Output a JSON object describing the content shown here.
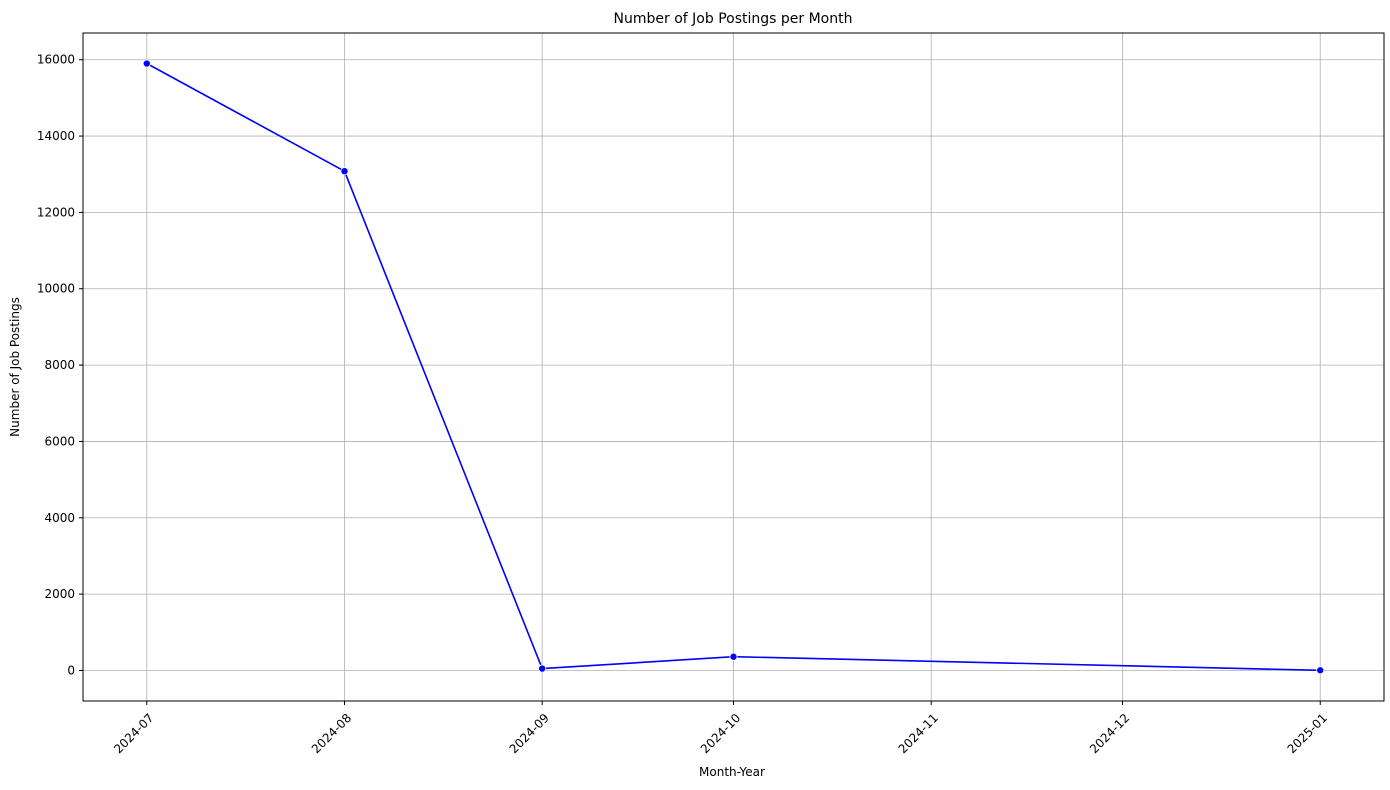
{
  "chart_data": {
    "type": "line",
    "title": "Number of Job Postings per Month",
    "xlabel": "Month-Year",
    "ylabel": "Number of Job Postings",
    "x_ticks": [
      "2024-07",
      "2024-08",
      "2024-09",
      "2024-10",
      "2024-11",
      "2024-12",
      "2025-01"
    ],
    "y_ticks": [
      0,
      2000,
      4000,
      6000,
      8000,
      10000,
      12000,
      14000,
      16000
    ],
    "ylim": [
      -800,
      16700
    ],
    "xlim": [
      "2024-06-21",
      "2025-01-11"
    ],
    "grid": true,
    "series": [
      {
        "color": "#0000ff",
        "marker": "circle",
        "points": [
          {
            "x": "2024-07-01",
            "y": 15900
          },
          {
            "x": "2024-08-01",
            "y": 13080
          },
          {
            "x": "2024-09-01",
            "y": 50
          },
          {
            "x": "2024-10-01",
            "y": 360
          },
          {
            "x": "2025-01-01",
            "y": 5
          }
        ]
      }
    ]
  }
}
